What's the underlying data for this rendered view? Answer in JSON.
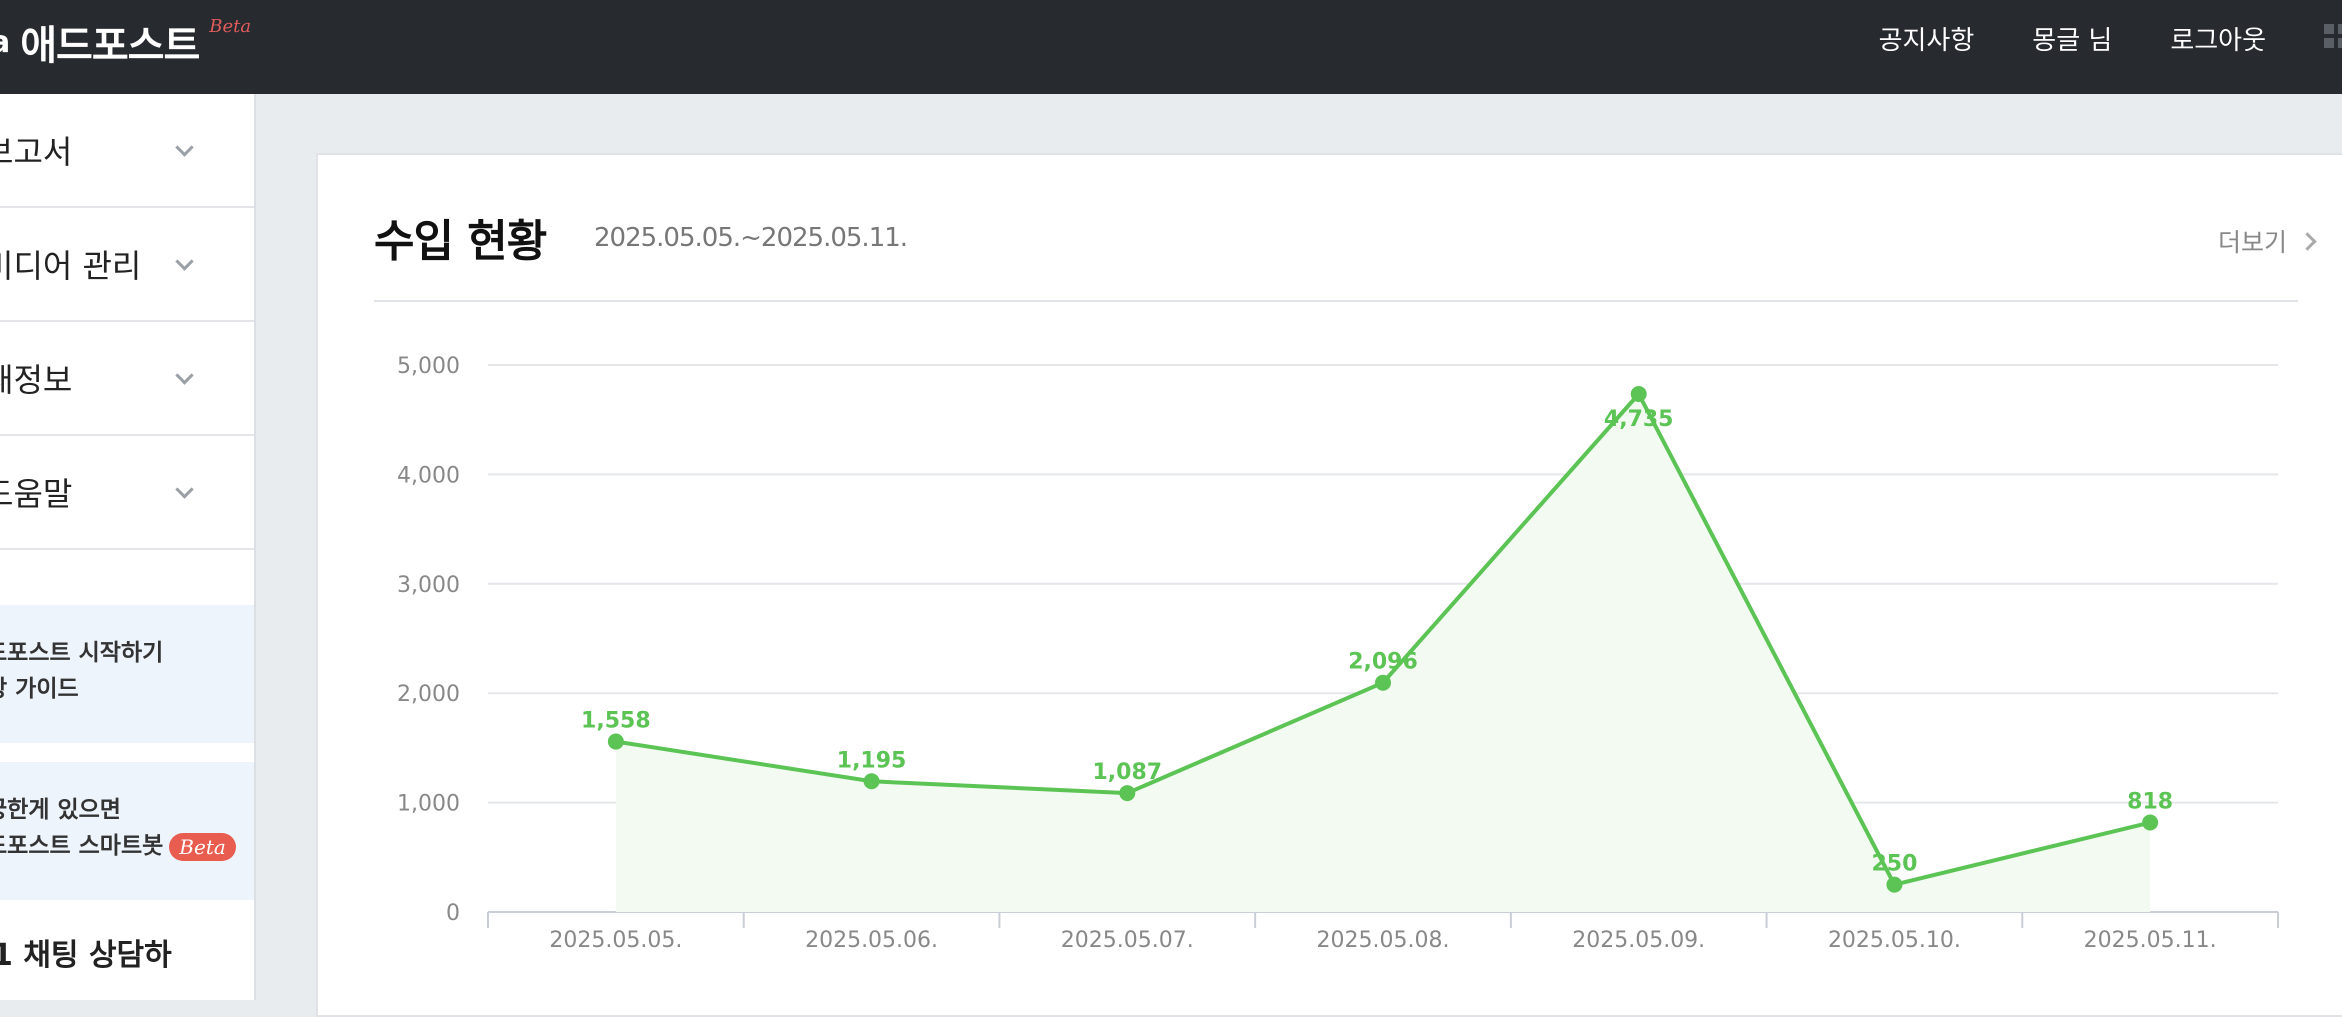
{
  "topbar": {
    "brand_glyph": "a",
    "brand_name": "애드포스트",
    "brand_badge": "Beta",
    "nav": [
      "공지사항",
      "몽글 님",
      "로그아웃"
    ]
  },
  "sidebar": {
    "items": [
      {
        "label": "보고서"
      },
      {
        "label": "미디어 관리"
      },
      {
        "label": "재정보"
      },
      {
        "label": "도움말"
      }
    ],
    "promo1": {
      "line1": "드포스트 시작하기",
      "line2": "상 가이드"
    },
    "promo2": {
      "line1": "궁한게 있으면",
      "line2": "드포스트 스마트봇",
      "badge": "Beta"
    },
    "chat": ":1 채팅 상담하"
  },
  "card": {
    "title": "수입 현황",
    "range": "2025.05.05.~2025.05.11.",
    "more": "더보기"
  },
  "chart_data": {
    "type": "area",
    "categories": [
      "2025.05.05.",
      "2025.05.06.",
      "2025.05.07.",
      "2025.05.08.",
      "2025.05.09.",
      "2025.05.10.",
      "2025.05.11."
    ],
    "values": [
      1558,
      1195,
      1087,
      2096,
      4735,
      250,
      818
    ],
    "value_labels": [
      "1,558",
      "1,195",
      "1,087",
      "2,096",
      "4,735",
      "250",
      "818"
    ],
    "y_ticks": [
      "0",
      "1,000",
      "2,000",
      "3,000",
      "4,000",
      "5,000"
    ],
    "y_tick_values": [
      0,
      1000,
      2000,
      3000,
      4000,
      5000
    ],
    "ylim": [
      0,
      5000
    ],
    "grid": true,
    "color": "#5bc454",
    "fill": "#f2faf1"
  }
}
